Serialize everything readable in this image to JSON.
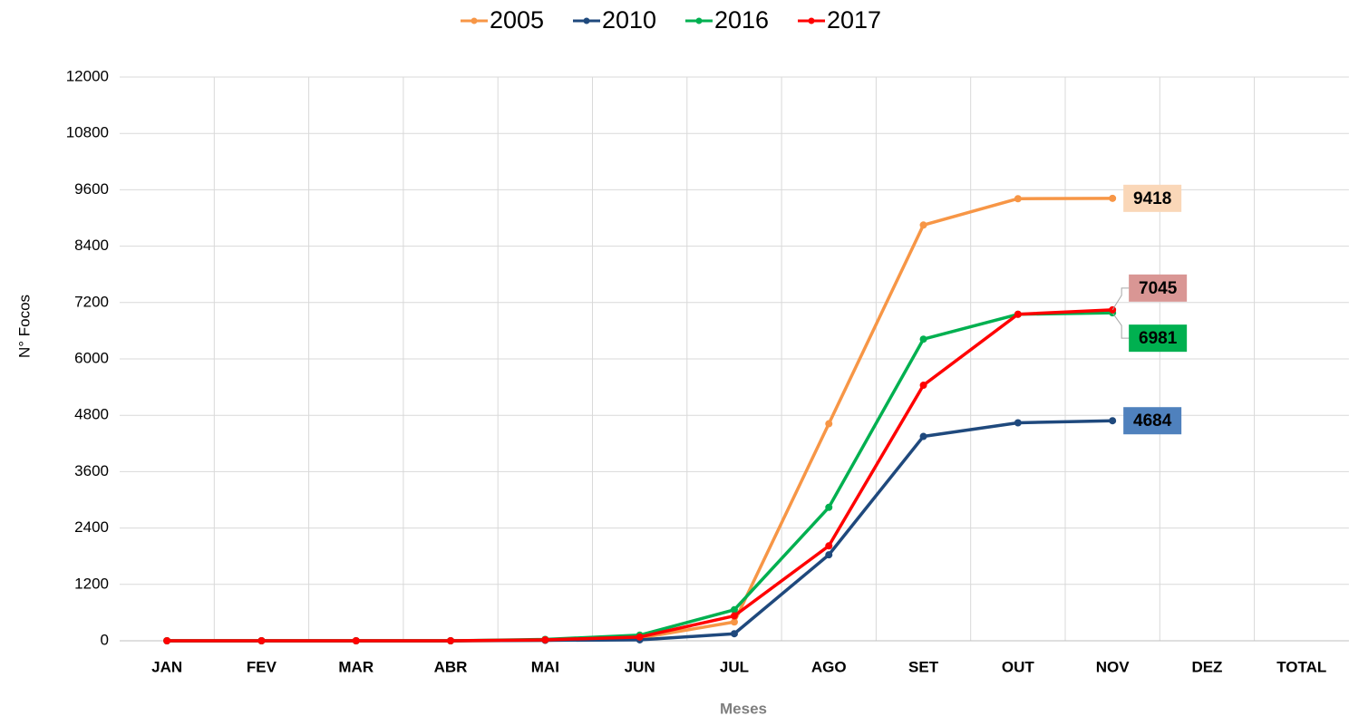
{
  "chart_data": {
    "type": "line",
    "x_label": "Meses",
    "y_label": "N° Focos",
    "categories": [
      "JAN",
      "FEV",
      "MAR",
      "ABR",
      "MAI",
      "JUN",
      "JUL",
      "AGO",
      "SET",
      "OUT",
      "NOV",
      "DEZ",
      "TOTAL"
    ],
    "series": [
      {
        "name": "2005",
        "color": "#f79646",
        "label_color": "#fad7b8",
        "values": [
          0,
          0,
          0,
          0,
          10,
          60,
          400,
          4620,
          8850,
          9410,
          9418,
          null,
          null
        ]
      },
      {
        "name": "2010",
        "color": "#1f497d",
        "label_color": "#4f81bd",
        "values": [
          0,
          0,
          0,
          0,
          10,
          20,
          150,
          1830,
          4350,
          4640,
          4684,
          null,
          null
        ]
      },
      {
        "name": "2016",
        "color": "#00b050",
        "label_color": "#00b050",
        "values": [
          0,
          0,
          0,
          0,
          30,
          120,
          660,
          2840,
          6420,
          6950,
          6981,
          null,
          null
        ]
      },
      {
        "name": "2017",
        "color": "#ff0000",
        "label_color": "#d99694",
        "values": [
          0,
          0,
          0,
          0,
          20,
          80,
          530,
          2020,
          5440,
          6950,
          7045,
          null,
          null
        ]
      }
    ],
    "ylim": [
      0,
      12000
    ],
    "yticks": [
      0,
      1200,
      2400,
      3600,
      4800,
      6000,
      7200,
      8400,
      9600,
      10800,
      12000
    ],
    "grid": true,
    "legend": "top"
  }
}
